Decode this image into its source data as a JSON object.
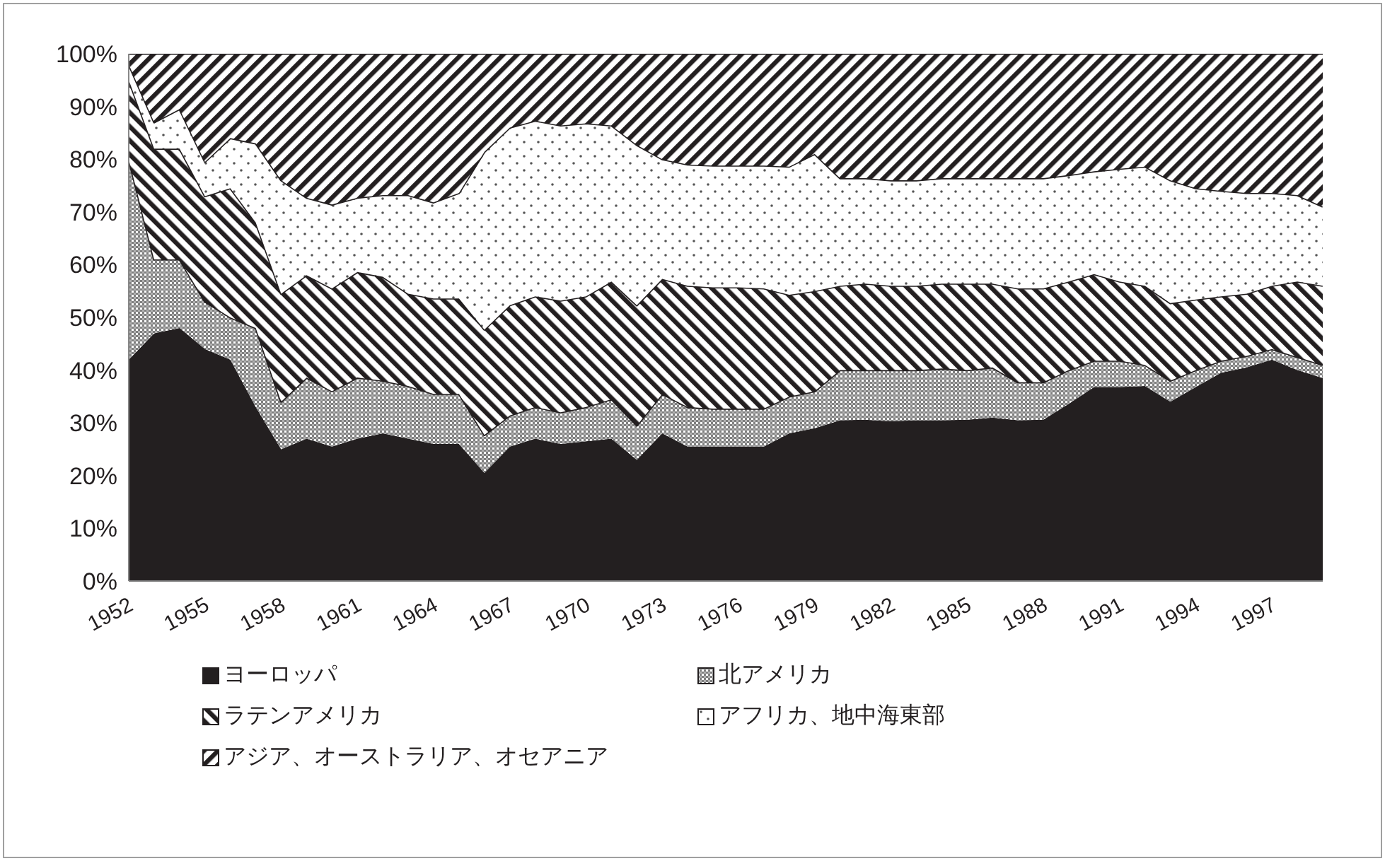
{
  "chart_data": {
    "type": "area",
    "stacked": true,
    "legend": "bottom",
    "x": [
      1952,
      1953,
      1954,
      1955,
      1956,
      1957,
      1958,
      1959,
      1960,
      1961,
      1962,
      1963,
      1964,
      1965,
      1966,
      1967,
      1968,
      1969,
      1970,
      1971,
      1972,
      1973,
      1974,
      1975,
      1976,
      1977,
      1978,
      1979,
      1980,
      1981,
      1982,
      1983,
      1984,
      1985,
      1986,
      1987,
      1988,
      1989,
      1990,
      1991,
      1992,
      1993,
      1994,
      1995,
      1996,
      1997,
      1998,
      1999
    ],
    "xlim": [
      1952,
      1999
    ],
    "xticks": [
      1952,
      1955,
      1958,
      1961,
      1964,
      1967,
      1970,
      1973,
      1976,
      1979,
      1982,
      1985,
      1988,
      1991,
      1994,
      1997
    ],
    "ylim": [
      0,
      100
    ],
    "yticks": [
      {
        "value": 0,
        "label": "0%"
      },
      {
        "value": 10,
        "label": "10%"
      },
      {
        "value": 20,
        "label": "20%"
      },
      {
        "value": 30,
        "label": "30%"
      },
      {
        "value": 40,
        "label": "40%"
      },
      {
        "value": 50,
        "label": "50%"
      },
      {
        "value": 60,
        "label": "60%"
      },
      {
        "value": 70,
        "label": "70%"
      },
      {
        "value": 80,
        "label": "80%"
      },
      {
        "value": 90,
        "label": "90%"
      },
      {
        "value": 100,
        "label": "100%"
      }
    ],
    "series": [
      {
        "name": "ヨーロッパ",
        "color": "#231f20",
        "values": [
          42,
          47,
          48,
          44,
          42,
          33,
          25,
          27,
          25.5,
          27,
          28,
          27,
          26,
          26,
          20.5,
          25.5,
          27,
          26,
          26.5,
          27,
          23,
          28,
          25.5,
          25.5,
          25.5,
          25.5,
          28,
          29,
          30.5,
          30.6,
          30.3,
          30.5,
          30.5,
          30.6,
          31,
          30.5,
          30.6,
          33.6,
          36.8,
          36.8,
          37,
          34,
          36.8,
          39.5,
          40.5,
          42,
          40,
          38.5
        ]
      },
      {
        "name": "北アメリカ",
        "color": "#808080",
        "values": [
          38,
          14,
          13,
          9,
          8,
          15,
          9,
          11.6,
          10.5,
          11.6,
          10,
          10,
          9.5,
          9.5,
          7.2,
          5.9,
          6,
          6,
          6.5,
          7.5,
          6.5,
          7.5,
          7.5,
          7.2,
          7.2,
          7.2,
          7,
          7,
          9.5,
          9.4,
          9.7,
          9.5,
          9.8,
          9.4,
          9.5,
          7.2,
          7.1,
          6.4,
          5,
          5,
          4,
          4,
          3.2,
          2.3,
          2.2,
          2,
          2.5,
          2.5
        ]
      },
      {
        "name": "ラテンアメリカ",
        "color": "#231f20",
        "values": [
          15,
          21,
          21,
          20,
          24.5,
          20,
          20.5,
          19.4,
          19.5,
          20,
          19.7,
          17.5,
          18.1,
          18.1,
          20,
          20.9,
          21,
          21.2,
          21,
          22.3,
          22.8,
          21.8,
          23,
          23,
          23,
          22.8,
          19.3,
          19,
          16,
          16.4,
          16,
          16,
          16.1,
          16.4,
          15.9,
          17.8,
          17.8,
          16.8,
          16.4,
          15,
          15,
          14.7,
          13.4,
          12.2,
          11.8,
          12,
          14.3,
          15
        ]
      },
      {
        "name": "アフリカ、地中海東部",
        "color": "#ffffff",
        "values": [
          3,
          5,
          7.5,
          6.5,
          9.5,
          15,
          21.5,
          14.7,
          15.9,
          14.1,
          15.5,
          18.7,
          18.2,
          20,
          33.7,
          33.7,
          33.3,
          33.2,
          32.8,
          29.6,
          30.4,
          22.7,
          23,
          23.1,
          23.1,
          23.3,
          24.3,
          26,
          20.4,
          20,
          20,
          20,
          20,
          20,
          20,
          20.9,
          20.9,
          20.2,
          19.5,
          21.4,
          22.6,
          23.3,
          21.1,
          20,
          19.1,
          17.6,
          16.4,
          15
        ]
      },
      {
        "name": "アジア、オーストラリア、オセアニア",
        "color": "#231f20",
        "values": [
          2,
          13,
          10.5,
          20.5,
          16,
          17,
          24,
          27.3,
          28.6,
          27.3,
          26.8,
          26.8,
          28.2,
          26.4,
          18.6,
          14,
          12.7,
          13.6,
          13.2,
          13.6,
          17.3,
          20,
          21,
          21.2,
          21.2,
          21.2,
          21.4,
          19,
          23.6,
          23.6,
          24,
          24,
          23.6,
          23.6,
          23.6,
          23.6,
          23.6,
          23,
          22.3,
          21.8,
          21.4,
          24,
          25.5,
          26,
          26.4,
          26.4,
          26.8,
          29
        ]
      }
    ]
  }
}
